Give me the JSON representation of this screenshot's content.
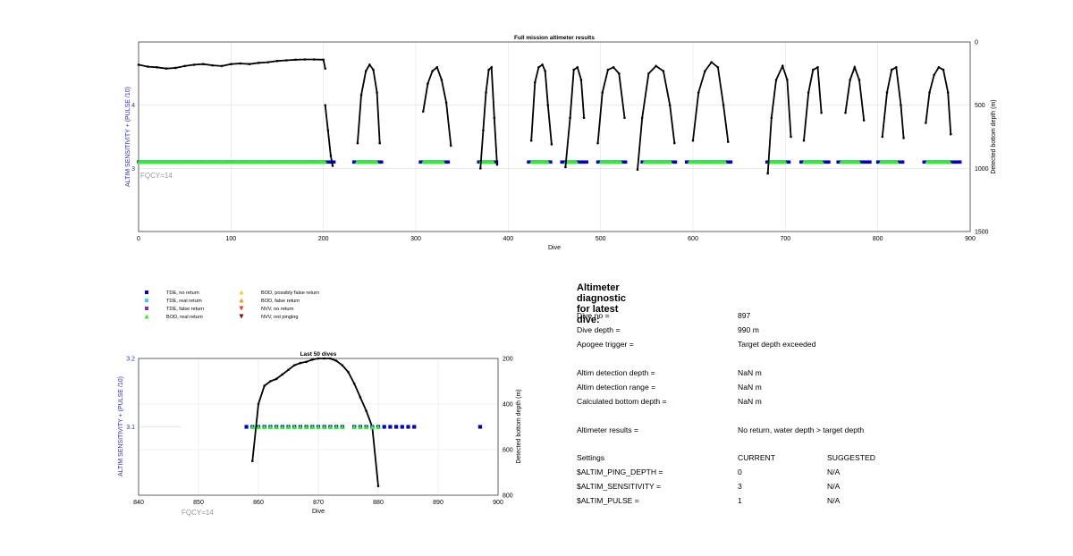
{
  "main_chart": {
    "title": "Full mission altimeter results",
    "xlabel": "Dive",
    "ylabel_left": "ALTIM SENSITIVITY + (PULSE /10)",
    "ylabel_right": "Detected bottom depth (m)",
    "fqcy_label": "FQCY=14",
    "x_ticks": [
      "0",
      "100",
      "200",
      "300",
      "400",
      "500",
      "600",
      "700",
      "800",
      "900"
    ],
    "y_left_ticks": [
      "4",
      "3"
    ],
    "y_right_ticks": [
      "0",
      "500",
      "1000",
      "1500"
    ]
  },
  "zoom_chart": {
    "title": "Last 50 dives",
    "xlabel": "Dive",
    "ylabel_left": "ALTIM SENSITIVITY + (PULSE /10)",
    "ylabel_right": "Detected bottom depth (m)",
    "fqcy_label": "FQCY=14",
    "x_ticks": [
      "840",
      "850",
      "860",
      "870",
      "880",
      "890",
      "900"
    ],
    "y_left_ticks": [
      "3.2",
      "3.1"
    ],
    "y_right_ticks": [
      "200",
      "400",
      "600",
      "800"
    ]
  },
  "legend": [
    {
      "label": "TDE, no return",
      "marker": "square",
      "color": "#0000c8"
    },
    {
      "label": "TDE, real return",
      "marker": "square",
      "color": "#3fd6e6"
    },
    {
      "label": "TDE, false return",
      "marker": "square",
      "color": "#7b2fbe"
    },
    {
      "label": "BOD, real return",
      "marker": "triangle-up",
      "color": "#33ee33"
    },
    {
      "label": "BOD, possibly false return",
      "marker": "triangle-up",
      "color": "#f2d21a"
    },
    {
      "label": "BOD, false return",
      "marker": "triangle-up",
      "color": "#f29b1a"
    },
    {
      "label": "NVV, no return",
      "marker": "triangle-down",
      "color": "#e8401a"
    },
    {
      "label": "NVV, not pinging",
      "marker": "triangle-down",
      "color": "#7a1010"
    }
  ],
  "diagnostic": {
    "title": "Altimeter diagnostic for latest dive:",
    "rows": [
      {
        "label": "Dive no =",
        "value": "897"
      },
      {
        "label": "Dive depth =",
        "value": "990 m"
      },
      {
        "label": "Apogee trigger =",
        "value": "Target depth exceeded"
      },
      {
        "label": "Altim detection depth =",
        "value": "NaN m"
      },
      {
        "label": "Altim detection range =",
        "value": "NaN m"
      },
      {
        "label": "Calculated bottom depth =",
        "value": "NaN m"
      },
      {
        "label": "Altimeter results =",
        "value": "No return, water depth > target depth"
      }
    ],
    "settings_header": {
      "label": "Settings",
      "current": "CURRENT",
      "suggested": "SUGGESTED"
    },
    "settings": [
      {
        "label": "$ALTIM_PING_DEPTH =",
        "current": "0",
        "suggested": "N/A"
      },
      {
        "label": "$ALTIM_SENSITIVITY =",
        "current": "3",
        "suggested": "N/A"
      },
      {
        "label": "$ALTIM_PULSE =",
        "current": "1",
        "suggested": "N/A"
      }
    ]
  },
  "chart_data": [
    {
      "type": "scatter",
      "title": "Full mission altimeter results",
      "xlabel": "Dive",
      "ylabel": "ALTIM SENSITIVITY + (PULSE /10)",
      "y2label": "Detected bottom depth (m)",
      "xlim": [
        0,
        900
      ],
      "ylim": [
        2.0,
        5.0
      ],
      "y2lim": [
        1500,
        0
      ],
      "grid": true,
      "altim_setting_value": 3.1,
      "tde_no_return_ranges": [
        [
          0,
          212
        ],
        [
          233,
          263
        ],
        [
          305,
          335
        ],
        [
          368,
          388
        ],
        [
          422,
          447
        ],
        [
          458,
          485
        ],
        [
          497,
          528
        ],
        [
          545,
          582
        ],
        [
          593,
          642
        ],
        [
          680,
          705
        ],
        [
          717,
          747
        ],
        [
          757,
          792
        ],
        [
          800,
          827
        ],
        [
          850,
          890
        ]
      ],
      "bod_real_return_ranges": [
        [
          0,
          202
        ],
        [
          236,
          258
        ],
        [
          308,
          330
        ],
        [
          370,
          384
        ],
        [
          425,
          443
        ],
        [
          462,
          474
        ],
        [
          500,
          522
        ],
        [
          547,
          576
        ],
        [
          596,
          635
        ],
        [
          682,
          700
        ],
        [
          720,
          740
        ],
        [
          760,
          780
        ],
        [
          803,
          821
        ],
        [
          853,
          878
        ]
      ],
      "bottom_depth_flat_segment": [
        [
          0,
          180
        ],
        [
          10,
          195
        ],
        [
          20,
          200
        ],
        [
          30,
          210
        ],
        [
          40,
          205
        ],
        [
          50,
          190
        ],
        [
          60,
          180
        ],
        [
          70,
          175
        ],
        [
          80,
          185
        ],
        [
          90,
          190
        ],
        [
          100,
          175
        ],
        [
          110,
          170
        ],
        [
          120,
          175
        ],
        [
          130,
          165
        ],
        [
          140,
          160
        ],
        [
          150,
          150
        ],
        [
          160,
          145
        ],
        [
          170,
          140
        ],
        [
          180,
          138
        ],
        [
          190,
          138
        ],
        [
          200,
          140
        ],
        [
          202,
          210
        ]
      ],
      "bottom_depth_dive_segments": [
        [
          [
            202,
            500
          ],
          [
            205,
            700
          ],
          [
            208,
            900
          ],
          [
            210,
            980
          ]
        ],
        [
          [
            237,
            800
          ],
          [
            241,
            420
          ],
          [
            246,
            230
          ],
          [
            250,
            180
          ],
          [
            254,
            220
          ],
          [
            258,
            400
          ],
          [
            261,
            800
          ]
        ],
        [
          [
            308,
            550
          ],
          [
            313,
            330
          ],
          [
            318,
            230
          ],
          [
            323,
            200
          ],
          [
            328,
            300
          ],
          [
            333,
            480
          ],
          [
            338,
            820
          ]
        ],
        [
          [
            370,
            1000
          ],
          [
            373,
            700
          ],
          [
            376,
            400
          ],
          [
            379,
            220
          ],
          [
            382,
            200
          ],
          [
            385,
            600
          ],
          [
            388,
            970
          ]
        ],
        [
          [
            425,
            780
          ],
          [
            429,
            320
          ],
          [
            433,
            200
          ],
          [
            437,
            180
          ],
          [
            440,
            230
          ],
          [
            443,
            500
          ],
          [
            447,
            810
          ]
        ],
        [
          [
            462,
            990
          ],
          [
            467,
            600
          ],
          [
            471,
            220
          ],
          [
            475,
            200
          ],
          [
            479,
            300
          ],
          [
            482,
            600
          ]
        ],
        [
          [
            497,
            800
          ],
          [
            502,
            400
          ],
          [
            508,
            220
          ],
          [
            514,
            200
          ],
          [
            520,
            250
          ],
          [
            526,
            600
          ]
        ],
        [
          [
            540,
            1010
          ],
          [
            545,
            600
          ],
          [
            552,
            250
          ],
          [
            560,
            190
          ],
          [
            568,
            230
          ],
          [
            575,
            500
          ],
          [
            580,
            800
          ]
        ],
        [
          [
            600,
            780
          ],
          [
            606,
            400
          ],
          [
            613,
            230
          ],
          [
            620,
            160
          ],
          [
            627,
            200
          ],
          [
            633,
            500
          ],
          [
            638,
            790
          ]
        ],
        [
          [
            681,
            1040
          ],
          [
            685,
            600
          ],
          [
            690,
            300
          ],
          [
            697,
            190
          ],
          [
            702,
            300
          ],
          [
            706,
            750
          ]
        ],
        [
          [
            720,
            780
          ],
          [
            725,
            400
          ],
          [
            730,
            220
          ],
          [
            735,
            200
          ],
          [
            739,
            560
          ]
        ],
        [
          [
            765,
            560
          ],
          [
            770,
            300
          ],
          [
            775,
            200
          ],
          [
            780,
            300
          ],
          [
            785,
            620
          ]
        ],
        [
          [
            805,
            750
          ],
          [
            810,
            400
          ],
          [
            815,
            220
          ],
          [
            820,
            200
          ],
          [
            825,
            500
          ],
          [
            828,
            760
          ]
        ],
        [
          [
            852,
            640
          ],
          [
            856,
            400
          ],
          [
            861,
            260
          ],
          [
            866,
            200
          ],
          [
            871,
            220
          ],
          [
            876,
            400
          ],
          [
            879,
            730
          ]
        ]
      ]
    },
    {
      "type": "scatter",
      "title": "Last 50 dives",
      "xlabel": "Dive",
      "ylabel": "ALTIM SENSITIVITY + (PULSE /10)",
      "y2label": "Detected bottom depth (m)",
      "xlim": [
        840,
        900
      ],
      "ylim": [
        3.0,
        3.2
      ],
      "y2lim": [
        800,
        200
      ],
      "grid": true,
      "altim_setting_value": 3.1,
      "tde_no_return_dives": [
        858,
        859,
        860,
        861,
        862,
        863,
        864,
        865,
        866,
        867,
        868,
        869,
        870,
        871,
        872,
        873,
        874,
        876,
        877,
        878,
        879,
        880,
        881,
        882,
        883,
        884,
        885,
        886,
        897
      ],
      "bod_real_return_dives": [
        859,
        860,
        861,
        862,
        863,
        864,
        865,
        866,
        867,
        868,
        869,
        870,
        871,
        872,
        873,
        874,
        876,
        877,
        878,
        879,
        880
      ],
      "bottom_depth": [
        [
          859,
          650
        ],
        [
          860,
          400
        ],
        [
          861,
          320
        ],
        [
          862,
          300
        ],
        [
          863,
          290
        ],
        [
          864,
          270
        ],
        [
          865,
          250
        ],
        [
          866,
          230
        ],
        [
          867,
          220
        ],
        [
          868,
          215
        ],
        [
          869,
          205
        ],
        [
          870,
          200
        ],
        [
          871,
          200
        ],
        [
          872,
          200
        ],
        [
          873,
          210
        ],
        [
          874,
          230
        ],
        [
          875,
          260
        ],
        [
          876,
          310
        ],
        [
          877,
          370
        ],
        [
          878,
          430
        ],
        [
          879,
          500
        ],
        [
          880,
          760
        ]
      ]
    }
  ]
}
